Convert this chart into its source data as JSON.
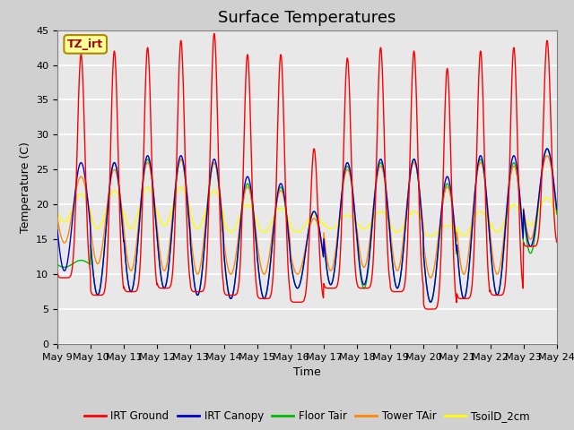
{
  "title": "Surface Temperatures",
  "xlabel": "Time",
  "ylabel": "Temperature (C)",
  "ylim": [
    0,
    45
  ],
  "n_days": 15,
  "xtick_labels": [
    "May 9",
    "May 10",
    "May 11",
    "May 12",
    "May 13",
    "May 14",
    "May 15",
    "May 16",
    "May 17",
    "May 18",
    "May 19",
    "May 20",
    "May 21",
    "May 22",
    "May 23",
    "May 24"
  ],
  "legend_entries": [
    "IRT Ground",
    "IRT Canopy",
    "Floor Tair",
    "Tower TAir",
    "TsoilD_2cm"
  ],
  "legend_colors": [
    "#ff0000",
    "#0000cc",
    "#00bb00",
    "#ff8800",
    "#ffff00"
  ],
  "annotation_text": "TZ_irt",
  "annotation_bg": "#ffff99",
  "annotation_border": "#aa8800",
  "plot_bg": "#e8e8e8",
  "fig_bg": "#d0d0d0",
  "title_fontsize": 13,
  "label_fontsize": 9,
  "tick_fontsize": 8,
  "irt_ground_max": [
    41.5,
    42.0,
    42.5,
    43.5,
    44.5,
    41.5,
    41.5,
    28.0,
    41.0,
    42.5,
    42.0,
    39.5,
    42.0,
    42.5,
    43.5
  ],
  "irt_ground_min": [
    9.5,
    7.0,
    7.5,
    8.0,
    7.5,
    7.0,
    6.5,
    6.0,
    8.0,
    8.0,
    7.5,
    5.0,
    6.5,
    7.0,
    14.0
  ],
  "irt_canopy_max": [
    26.0,
    26.0,
    27.0,
    27.0,
    26.5,
    24.0,
    23.0,
    19.0,
    26.0,
    26.5,
    26.5,
    24.0,
    27.0,
    27.0,
    28.0
  ],
  "irt_canopy_min": [
    10.5,
    7.0,
    7.5,
    8.0,
    7.0,
    6.5,
    6.5,
    8.0,
    8.5,
    8.5,
    8.0,
    6.0,
    6.5,
    7.0,
    14.0
  ],
  "floor_tair_max": [
    12.0,
    26.0,
    26.5,
    26.5,
    26.0,
    23.0,
    22.5,
    19.0,
    25.5,
    26.0,
    26.5,
    23.0,
    26.5,
    26.0,
    28.0
  ],
  "floor_tair_min": [
    11.0,
    7.0,
    7.5,
    8.0,
    7.0,
    6.5,
    6.5,
    8.0,
    8.5,
    8.0,
    8.0,
    6.0,
    6.5,
    7.0,
    13.0
  ],
  "tower_tair_max": [
    24.0,
    25.0,
    26.0,
    26.5,
    26.0,
    22.5,
    22.0,
    18.0,
    25.0,
    25.5,
    26.0,
    22.5,
    26.0,
    25.5,
    27.0
  ],
  "tower_tair_min": [
    14.5,
    11.5,
    10.5,
    10.5,
    10.0,
    10.0,
    10.0,
    10.0,
    10.5,
    11.0,
    10.5,
    9.5,
    10.0,
    10.0,
    15.0
  ],
  "tsoil_max": [
    21.5,
    22.0,
    22.5,
    22.5,
    22.0,
    20.0,
    19.5,
    18.5,
    18.5,
    19.0,
    19.0,
    17.0,
    19.0,
    20.0,
    21.0
  ],
  "tsoil_min": [
    17.5,
    16.5,
    16.5,
    17.0,
    16.5,
    16.0,
    16.0,
    16.0,
    16.5,
    16.5,
    16.0,
    15.5,
    15.5,
    16.0,
    17.0
  ]
}
